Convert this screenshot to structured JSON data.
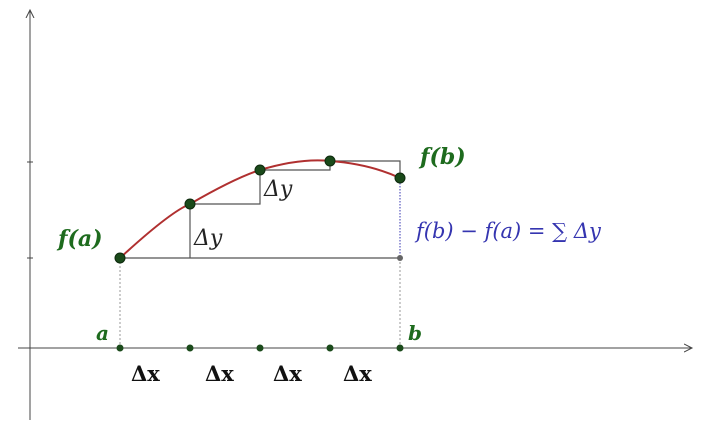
{
  "labels": {
    "fa": "f(a)",
    "fb": "f(b)",
    "a": "a",
    "b": "b",
    "dy1": "Δy",
    "dy2": "Δy",
    "dx": [
      "Δx",
      "Δx",
      "Δx",
      "Δx"
    ],
    "formula": "f(b) − f(a) = ∑ Δy"
  },
  "colors": {
    "curve": "#b03030",
    "point": "#1a4a1a",
    "label_green": "#1e6b1e",
    "formula_blue": "#3535b0",
    "steps": "#555555"
  }
}
